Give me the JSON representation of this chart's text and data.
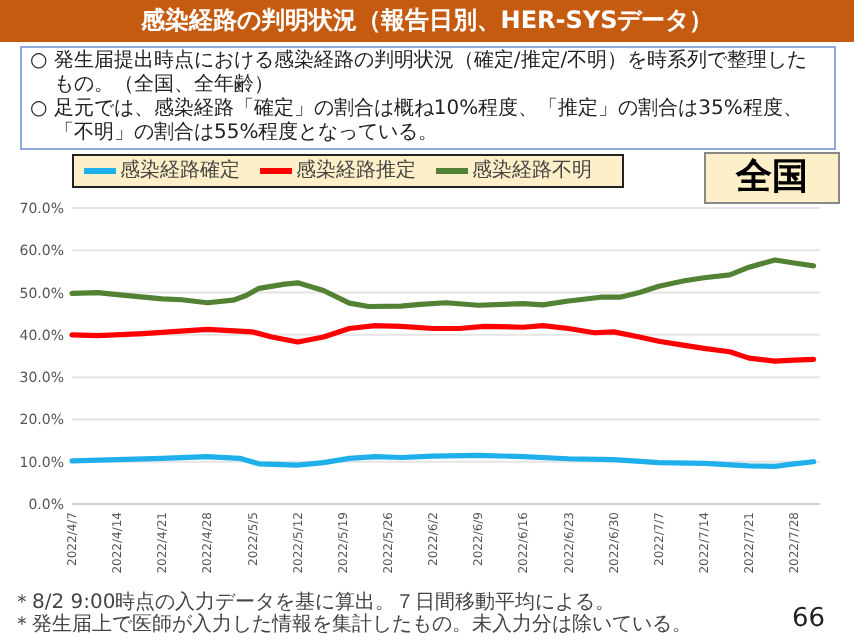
{
  "chart_data": {
    "type": "line",
    "title": "感染経路の判明状況（報告日別、HER-SYSデータ）",
    "subtitle": "全国",
    "annotations": [
      "○ 発生届提出時点における感染経路の判明状況（確定/推定/不明）を時系列で整理したもの。（全国、全年齢）",
      "○ 足元では、感染経路「確定」の割合は概ね10%程度、「推定」の割合は35%程度、「不明」の割合は55%程度となっている。",
      "＊8/2 9:00時点の入力データを基に算出。７日間移動平均による。",
      "＊発生届上で医師が入力した情報を集計したもの。未入力分は除いている。",
      "66"
    ],
    "series": [
      {
        "name": "感染経路確定",
        "color": "#1fb0ec",
        "x": [
          "2022-04-07",
          "2022-04-14",
          "2022-04-21",
          "2022-04-28",
          "2022-05-03",
          "2022-05-06",
          "2022-05-12",
          "2022-05-16",
          "2022-05-20",
          "2022-05-24",
          "2022-05-28",
          "2022-06-02",
          "2022-06-09",
          "2022-06-16",
          "2022-06-23",
          "2022-06-30",
          "2022-07-07",
          "2022-07-14",
          "2022-07-21",
          "2022-07-25",
          "2022-07-28",
          "2022-07-31"
        ],
        "values": [
          10.2,
          10.5,
          10.8,
          11.2,
          10.8,
          9.5,
          9.2,
          9.8,
          10.8,
          11.2,
          11.0,
          11.3,
          11.5,
          11.2,
          10.7,
          10.5,
          9.8,
          9.6,
          9.0,
          8.9,
          9.5,
          10.0
        ]
      },
      {
        "name": "感染経路推定",
        "color": "#ff0000",
        "x": [
          "2022-04-07",
          "2022-04-11",
          "2022-04-18",
          "2022-04-25",
          "2022-04-28",
          "2022-05-05",
          "2022-05-08",
          "2022-05-12",
          "2022-05-16",
          "2022-05-20",
          "2022-05-24",
          "2022-05-28",
          "2022-06-02",
          "2022-06-06",
          "2022-06-10",
          "2022-06-16",
          "2022-06-19",
          "2022-06-23",
          "2022-06-27",
          "2022-06-30",
          "2022-07-04",
          "2022-07-07",
          "2022-07-11",
          "2022-07-14",
          "2022-07-18",
          "2022-07-21",
          "2022-07-25",
          "2022-07-28",
          "2022-07-31"
        ],
        "values": [
          40.0,
          39.8,
          40.3,
          41.0,
          41.3,
          40.7,
          39.5,
          38.3,
          39.5,
          41.5,
          42.2,
          42.0,
          41.5,
          41.5,
          42.0,
          41.8,
          42.2,
          41.5,
          40.5,
          40.7,
          39.5,
          38.5,
          37.5,
          36.8,
          36.0,
          34.5,
          33.8,
          34.0,
          34.2
        ]
      },
      {
        "name": "感染経路不明",
        "color": "#548235",
        "x": [
          "2022-04-07",
          "2022-04-11",
          "2022-04-14",
          "2022-04-21",
          "2022-04-24",
          "2022-04-28",
          "2022-05-02",
          "2022-05-04",
          "2022-05-06",
          "2022-05-10",
          "2022-05-12",
          "2022-05-16",
          "2022-05-20",
          "2022-05-23",
          "2022-05-28",
          "2022-05-31",
          "2022-06-04",
          "2022-06-09",
          "2022-06-16",
          "2022-06-19",
          "2022-06-23",
          "2022-06-28",
          "2022-07-01",
          "2022-07-04",
          "2022-07-07",
          "2022-07-11",
          "2022-07-14",
          "2022-07-18",
          "2022-07-21",
          "2022-07-25",
          "2022-07-28",
          "2022-07-31"
        ],
        "values": [
          49.8,
          50.0,
          49.5,
          48.5,
          48.3,
          47.6,
          48.2,
          49.3,
          51.0,
          52.0,
          52.3,
          50.5,
          47.5,
          46.7,
          46.8,
          47.2,
          47.6,
          47.0,
          47.4,
          47.1,
          48.0,
          48.9,
          48.9,
          50.0,
          51.5,
          52.8,
          53.5,
          54.2,
          56.0,
          57.7,
          57.0,
          56.3
        ]
      }
    ],
    "xlim": [
      "2022-04-07",
      "2022-08-01"
    ],
    "xticks": [
      {
        "value": "2022-04-07",
        "label": "2022/4/7"
      },
      {
        "value": "2022-04-14",
        "label": "2022/4/14"
      },
      {
        "value": "2022-04-21",
        "label": "2022/4/21"
      },
      {
        "value": "2022-04-28",
        "label": "2022/4/28"
      },
      {
        "value": "2022-05-05",
        "label": "2022/5/5"
      },
      {
        "value": "2022-05-12",
        "label": "2022/5/12"
      },
      {
        "value": "2022-05-19",
        "label": "2022/5/19"
      },
      {
        "value": "2022-05-26",
        "label": "2022/5/26"
      },
      {
        "value": "2022-06-02",
        "label": "2022/6/2"
      },
      {
        "value": "2022-06-09",
        "label": "2022/6/9"
      },
      {
        "value": "2022-06-16",
        "label": "2022/6/16"
      },
      {
        "value": "2022-06-23",
        "label": "2022/6/23"
      },
      {
        "value": "2022-06-30",
        "label": "2022/6/30"
      },
      {
        "value": "2022-07-07",
        "label": "2022/7/7"
      },
      {
        "value": "2022-07-14",
        "label": "2022/7/14"
      },
      {
        "value": "2022-07-21",
        "label": "2022/7/21"
      },
      {
        "value": "2022-07-28",
        "label": "2022/7/28"
      }
    ],
    "ylim": [
      0,
      70
    ],
    "yticks": [
      {
        "value": 0,
        "label": "0.0%"
      },
      {
        "value": 10,
        "label": "10.0%"
      },
      {
        "value": 20,
        "label": "20.0%"
      },
      {
        "value": 30,
        "label": "30.0%"
      },
      {
        "value": 40,
        "label": "40.0%"
      },
      {
        "value": 50,
        "label": "50.0%"
      },
      {
        "value": 60,
        "label": "60.0%"
      },
      {
        "value": 70,
        "label": "70.0%"
      }
    ],
    "grid": "y",
    "legend": "top left"
  }
}
